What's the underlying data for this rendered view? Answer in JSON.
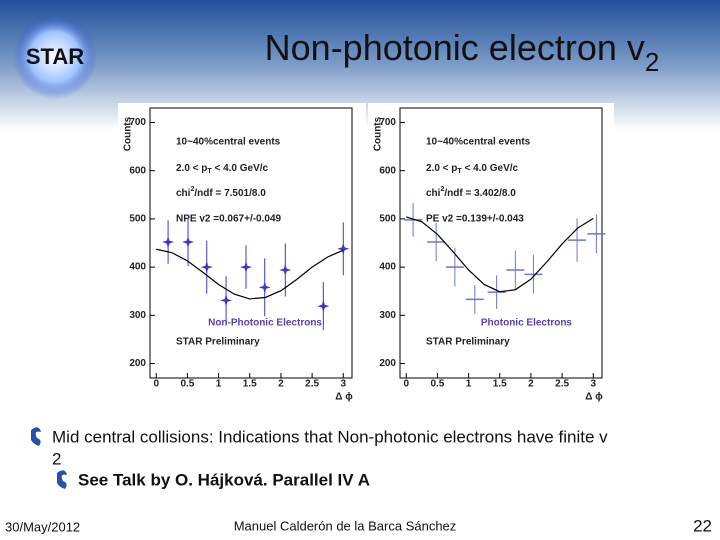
{
  "logo": "STAR",
  "title": "Non-photonic electron v",
  "title_sub": "2",
  "bullet": "Mid central collisions: Indications that Non-photonic electrons have finite v",
  "bullet_sub": "2",
  "sub_bullet": "See Talk by O. Hájková. Parallel IV A",
  "footer": {
    "date": "30/May/2012",
    "author": "Manuel Calderón de la Barca Sánchez",
    "page": "22"
  },
  "chart_data": [
    {
      "type": "scatter",
      "y_label": "Counts",
      "x_label": "Δ ϕ",
      "centrality": "10~40%central events",
      "pt_range": [
        "2.0 < p",
        "T",
        " < 4.0 GeV/c"
      ],
      "chi": [
        "chi",
        "2",
        "/ndf = 7.501/8.0"
      ],
      "v2_text": "NPE v2 =0.067+/-0.049",
      "label": "Non-Photonic Electrons",
      "label_color": "#5a3fb0",
      "preliminary": "STAR Preliminary",
      "xlim": [
        -0.1,
        3.14
      ],
      "ylim": [
        170,
        730
      ],
      "xticks": [
        0,
        0.5,
        1,
        1.5,
        2,
        2.5,
        3
      ],
      "yticks": [
        200,
        300,
        400,
        500,
        600,
        700
      ],
      "series": [
        {
          "color": "#3a3ac8",
          "marker": "star",
          "x": [
            0.19,
            0.51,
            0.81,
            1.12,
            1.44,
            1.74,
            2.07,
            2.68,
            3.0
          ],
          "values": [
            452,
            452,
            400,
            331,
            400,
            358,
            394,
            319,
            438
          ],
          "errors": [
            45,
            50,
            55,
            50,
            45,
            60,
            55,
            50,
            55
          ]
        },
        {
          "color": "#000000",
          "marker": "line",
          "x": [
            0,
            0.25,
            0.5,
            0.75,
            1,
            1.25,
            1.5,
            1.75,
            2,
            2.25,
            2.5,
            2.75,
            3
          ],
          "values": [
            437,
            430,
            413,
            389,
            364,
            344,
            334,
            337,
            351,
            374,
            400,
            421,
            435
          ]
        }
      ]
    },
    {
      "type": "scatter",
      "y_label": "Counts",
      "x_label": "Δ ϕ",
      "centrality": "10~40%central events",
      "pt_range": [
        "2.0 < p",
        "T",
        " < 4.0 GeV/c"
      ],
      "chi": [
        "chi",
        "2",
        "/ndf = 3.402/8.0"
      ],
      "v2_text": "PE v2 =0.139+/-0.043",
      "label": "Photonic Electrons",
      "label_color": "#5a3fb0",
      "preliminary": "STAR Preliminary",
      "xlim": [
        -0.1,
        3.14
      ],
      "ylim": [
        170,
        730
      ],
      "xticks": [
        0,
        0.5,
        1,
        1.5,
        2,
        2.5,
        3
      ],
      "yticks": [
        200,
        300,
        400,
        500,
        600,
        700
      ],
      "series": [
        {
          "color": "#6a78d0",
          "marker": "cross",
          "x": [
            0.11,
            0.48,
            0.78,
            1.1,
            1.45,
            1.75,
            2.04,
            2.74,
            3.05
          ],
          "values": [
            498,
            452,
            400,
            333,
            348,
            394,
            385,
            456,
            469
          ],
          "errors": [
            35,
            40,
            40,
            30,
            35,
            40,
            40,
            45,
            40
          ]
        },
        {
          "color": "#000000",
          "marker": "line",
          "x": [
            0,
            0.25,
            0.5,
            0.75,
            1,
            1.25,
            1.5,
            1.75,
            2,
            2.25,
            2.5,
            2.75,
            3
          ],
          "values": [
            504,
            494,
            468,
            432,
            394,
            364,
            349,
            353,
            375,
            410,
            448,
            481,
            501
          ]
        }
      ]
    }
  ]
}
